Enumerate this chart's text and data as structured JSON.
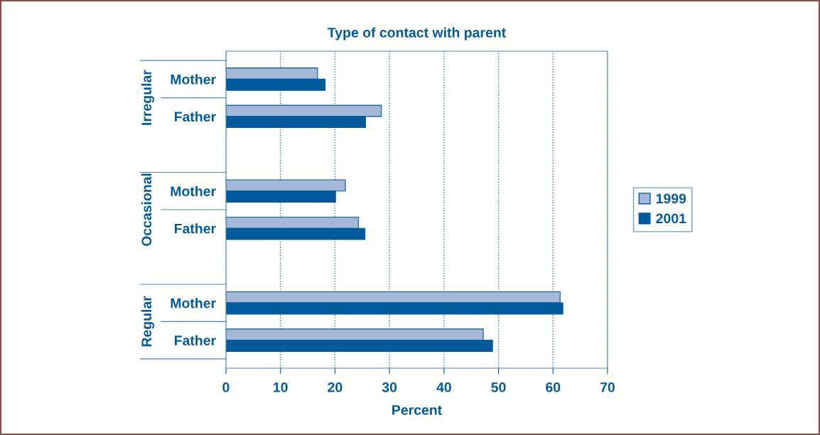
{
  "chart_data": {
    "type": "bar",
    "orientation": "horizontal",
    "title": "Type of contact with parent",
    "xlabel": "Percent",
    "categories": [
      "Mother",
      "Father",
      "Mother",
      "Father",
      "Mother",
      "Father"
    ],
    "annotations": [
      "Irregular",
      "Occasional",
      "Regular"
    ],
    "series": [
      {
        "name": "1999",
        "color": "#a6b8d8",
        "values": [
          16.8,
          28.5,
          21.9,
          24.3,
          61.3,
          47.2
        ]
      },
      {
        "name": "2001",
        "color": "#005a9c",
        "values": [
          18.2,
          25.6,
          20.1,
          25.5,
          61.8,
          48.9
        ]
      }
    ],
    "xlim": [
      0,
      70
    ],
    "xticks": [
      0,
      10,
      20,
      30,
      40,
      50,
      60,
      70
    ],
    "grid": "x",
    "legend": "right"
  }
}
